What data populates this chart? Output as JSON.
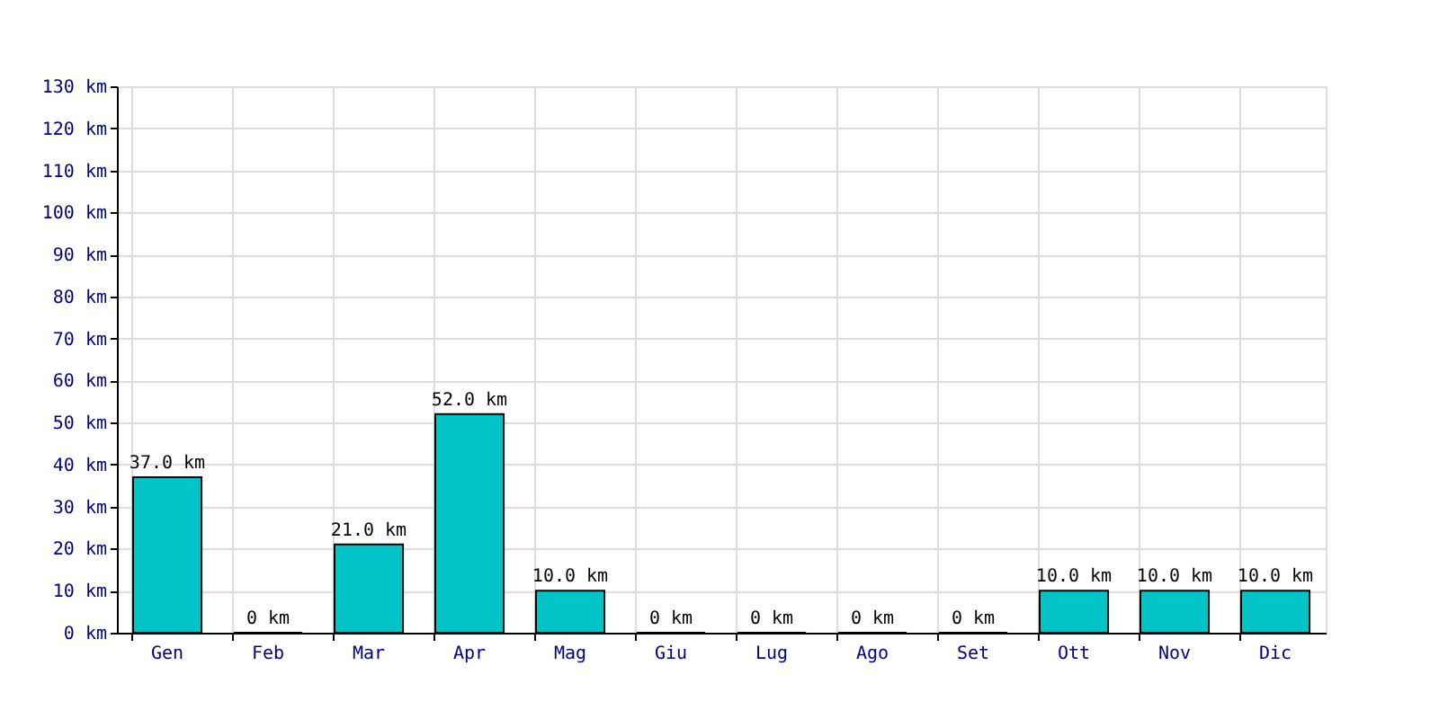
{
  "chart_data": {
    "type": "bar",
    "categories": [
      "Gen",
      "Feb",
      "Mar",
      "Apr",
      "Mag",
      "Giu",
      "Lug",
      "Ago",
      "Set",
      "Ott",
      "Nov",
      "Dic"
    ],
    "values": [
      37,
      0,
      21,
      52,
      10,
      0,
      0,
      0,
      0,
      10,
      10,
      10
    ],
    "value_labels": [
      "37.0 km",
      "0 km",
      "21.0 km",
      "52.0 km",
      "10.0 km",
      "0 km",
      "0 km",
      "0 km",
      "0 km",
      "10.0 km",
      "10.0 km",
      "10.0 km"
    ],
    "color": "#00c4c8",
    "ylim": [
      0,
      130
    ],
    "yticks": [
      {
        "value": 0,
        "label": "0 km"
      },
      {
        "value": 10,
        "label": "10 km"
      },
      {
        "value": 20,
        "label": "20 km"
      },
      {
        "value": 30,
        "label": "30 km"
      },
      {
        "value": 40,
        "label": "40 km"
      },
      {
        "value": 50,
        "label": "50 km"
      },
      {
        "value": 60,
        "label": "60 km"
      },
      {
        "value": 70,
        "label": "70 km"
      },
      {
        "value": 80,
        "label": "80 km"
      },
      {
        "value": 90,
        "label": "90 km"
      },
      {
        "value": 100,
        "label": "100 km"
      },
      {
        "value": 110,
        "label": "110 km"
      },
      {
        "value": 120,
        "label": "120 km"
      },
      {
        "value": 130,
        "label": "130 km"
      }
    ],
    "grid": true
  }
}
